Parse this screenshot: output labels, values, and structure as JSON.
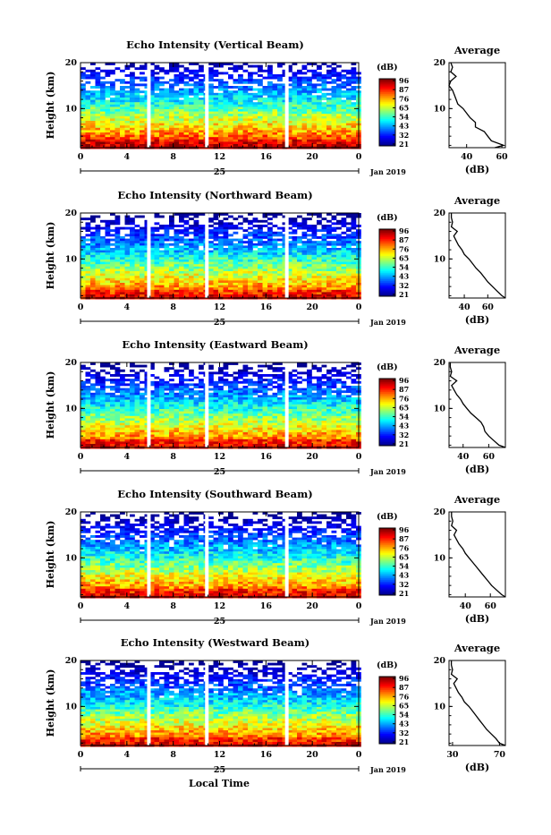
{
  "figure": {
    "date_label": "Jan 2019",
    "x_axis_label": "Local Time"
  },
  "chart_data": [
    {
      "type": "heatmap",
      "title": "Echo Intensity (Vertical Beam)",
      "ylabel": "Height (km)",
      "xlabel": "Local Time",
      "x_ticks": [
        "0",
        "4",
        "8",
        "12",
        "16",
        "20",
        "0"
      ],
      "day_label": "25",
      "date_label": "Jan 2019",
      "y_ticks": [
        "20",
        "10"
      ],
      "xlim": [
        0,
        24
      ],
      "ylim": [
        1.5,
        20
      ],
      "data_gaps_hours": [
        5.9,
        10.9,
        17.8
      ],
      "colorbar": {
        "unit": "(dB)",
        "ticks": [
          "96",
          "87",
          "76",
          "65",
          "54",
          "43",
          "32",
          "21"
        ]
      },
      "average_profile": {
        "title": "Average",
        "xlabel": "(dB)",
        "x_ticks": [
          "40",
          "60"
        ],
        "x_tick_values": [
          40,
          60
        ],
        "xlim": [
          30,
          62
        ],
        "y_ticks": [
          "20",
          "10"
        ],
        "height_km": [
          1.5,
          2,
          3,
          4,
          5,
          6,
          7,
          8,
          9,
          10,
          11,
          12,
          13,
          14,
          15,
          16,
          17,
          18,
          19,
          20
        ],
        "db": [
          56,
          61,
          54,
          52,
          50,
          45,
          45,
          42,
          40,
          38,
          35,
          34,
          33,
          32,
          30,
          31,
          34,
          31,
          32,
          31
        ]
      }
    },
    {
      "type": "heatmap",
      "title": "Echo Intensity (Northward Beam)",
      "ylabel": "Height (km)",
      "xlabel": "Local Time",
      "x_ticks": [
        "0",
        "4",
        "8",
        "12",
        "16",
        "20",
        "0"
      ],
      "day_label": "25",
      "date_label": "Jan 2019",
      "y_ticks": [
        "20",
        "10"
      ],
      "xlim": [
        0,
        24
      ],
      "ylim": [
        1.5,
        20
      ],
      "data_gaps_hours": [
        5.9,
        10.9,
        17.8
      ],
      "colorbar": {
        "unit": "(dB)",
        "ticks": [
          "96",
          "87",
          "76",
          "65",
          "54",
          "43",
          "32",
          "21"
        ]
      },
      "average_profile": {
        "title": "Average",
        "xlabel": "(dB)",
        "x_ticks": [
          "40",
          "60"
        ],
        "x_tick_values": [
          40,
          60
        ],
        "xlim": [
          27,
          75
        ],
        "y_ticks": [
          "20",
          "10"
        ],
        "height_km": [
          1.5,
          2,
          3,
          4,
          5,
          6,
          7,
          8,
          9,
          10,
          11,
          12,
          13,
          14,
          15,
          16,
          17,
          18,
          19,
          20
        ],
        "db": [
          75,
          72,
          68,
          64,
          60,
          57,
          54,
          50,
          47,
          44,
          40,
          38,
          35,
          33,
          31,
          34,
          29,
          30,
          29,
          29
        ]
      }
    },
    {
      "type": "heatmap",
      "title": "Echo Intensity (Eastward Beam)",
      "ylabel": "Height (km)",
      "xlabel": "Local Time",
      "x_ticks": [
        "0",
        "4",
        "8",
        "12",
        "16",
        "20",
        "0"
      ],
      "day_label": "25",
      "date_label": "Jan 2019",
      "y_ticks": [
        "20",
        "10"
      ],
      "xlim": [
        0,
        24
      ],
      "ylim": [
        1.5,
        20
      ],
      "data_gaps_hours": [
        5.9,
        10.9,
        17.8
      ],
      "colorbar": {
        "unit": "(dB)",
        "ticks": [
          "96",
          "87",
          "76",
          "65",
          "54",
          "43",
          "32",
          "21"
        ]
      },
      "average_profile": {
        "title": "Average",
        "xlabel": "(dB)",
        "x_ticks": [
          "40",
          "60"
        ],
        "x_tick_values": [
          40,
          60
        ],
        "xlim": [
          29,
          73
        ],
        "y_ticks": [
          "20",
          "10"
        ],
        "height_km": [
          1.5,
          2,
          3,
          4,
          5,
          6,
          7,
          8,
          9,
          10,
          11,
          12,
          13,
          14,
          15,
          16,
          17,
          18,
          19,
          20
        ],
        "db": [
          73,
          68,
          64,
          60,
          57,
          56,
          54,
          50,
          46,
          43,
          40,
          38,
          35,
          33,
          31,
          35,
          30,
          31,
          30,
          30
        ]
      }
    },
    {
      "type": "heatmap",
      "title": "Echo Intensity (Southward Beam)",
      "ylabel": "Height (km)",
      "xlabel": "Local Time",
      "x_ticks": [
        "0",
        "4",
        "8",
        "12",
        "16",
        "20",
        "0"
      ],
      "day_label": "25",
      "date_label": "Jan 2019",
      "y_ticks": [
        "20",
        "10"
      ],
      "xlim": [
        0,
        24
      ],
      "ylim": [
        1.5,
        20
      ],
      "data_gaps_hours": [
        5.9,
        10.9,
        17.8
      ],
      "colorbar": {
        "unit": "(dB)",
        "ticks": [
          "96",
          "87",
          "76",
          "65",
          "54",
          "43",
          "32",
          "21"
        ]
      },
      "average_profile": {
        "title": "Average",
        "xlabel": "(dB)",
        "x_ticks": [
          "40",
          "60"
        ],
        "x_tick_values": [
          40,
          60
        ],
        "xlim": [
          27,
          72
        ],
        "y_ticks": [
          "20",
          "10"
        ],
        "height_km": [
          1.5,
          2,
          3,
          4,
          5,
          6,
          7,
          8,
          9,
          10,
          11,
          12,
          13,
          14,
          15,
          16,
          17,
          18,
          19,
          20
        ],
        "db": [
          72,
          69,
          65,
          61,
          58,
          55,
          52,
          49,
          46,
          43,
          40,
          38,
          35,
          33,
          31,
          33,
          29,
          30,
          29,
          29
        ]
      }
    },
    {
      "type": "heatmap",
      "title": "Echo Intensity (Westward Beam)",
      "ylabel": "Height (km)",
      "xlabel": "Local Time",
      "x_ticks": [
        "0",
        "4",
        "8",
        "12",
        "16",
        "20",
        "0"
      ],
      "day_label": "25",
      "date_label": "Jan 2019",
      "y_ticks": [
        "20",
        "10"
      ],
      "xlim": [
        0,
        24
      ],
      "ylim": [
        1.5,
        20
      ],
      "data_gaps_hours": [
        5.9,
        10.9,
        17.8
      ],
      "colorbar": {
        "unit": "(dB)",
        "ticks": [
          "96",
          "87",
          "76",
          "65",
          "54",
          "43",
          "32",
          "21"
        ]
      },
      "average_profile": {
        "title": "Average",
        "xlabel": "(dB)",
        "x_ticks": [
          "30",
          "70"
        ],
        "x_tick_values": [
          30,
          70
        ],
        "xlim": [
          27,
          75
        ],
        "y_ticks": [
          "20",
          "10"
        ],
        "height_km": [
          1.5,
          2,
          3,
          4,
          5,
          6,
          7,
          8,
          9,
          10,
          11,
          12,
          13,
          14,
          15,
          16,
          17,
          18,
          19,
          20
        ],
        "db": [
          75,
          70,
          67,
          63,
          59,
          56,
          53,
          50,
          47,
          44,
          40,
          38,
          35,
          33,
          31,
          34,
          29,
          30,
          29,
          29
        ]
      }
    }
  ]
}
